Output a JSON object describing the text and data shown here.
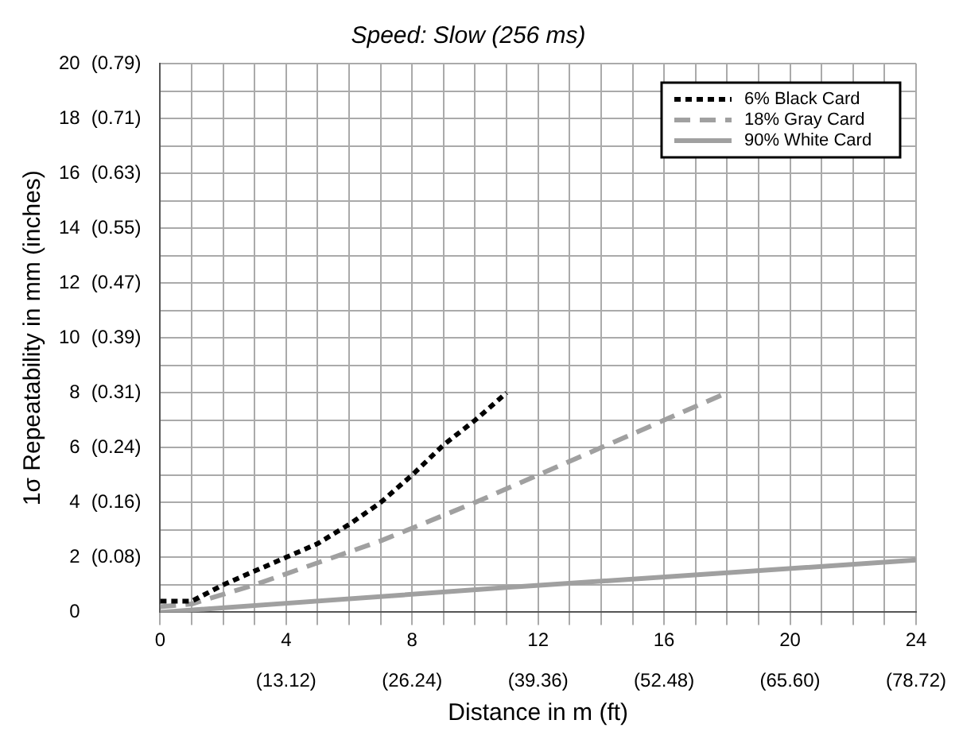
{
  "chart_data": {
    "type": "line",
    "title": "Speed: Slow (256 ms)",
    "xlabel": "Distance in m (ft)",
    "ylabel": "1σ Repeatability in mm (inches)",
    "xlim": [
      0,
      24
    ],
    "ylim": [
      0,
      20
    ],
    "xticks": [
      0,
      {
        "value": 1,
        "label": null
      },
      {
        "value": 2,
        "label": null
      },
      {
        "value": 3,
        "label": null
      },
      4,
      {
        "value": 5,
        "label": null
      },
      {
        "value": 6,
        "label": null
      },
      {
        "value": 7,
        "label": null
      },
      8,
      {
        "value": 9,
        "label": null
      },
      {
        "value": 10,
        "label": null
      },
      {
        "value": 11,
        "label": null
      },
      12,
      {
        "value": 13,
        "label": null
      },
      {
        "value": 14,
        "label": null
      },
      {
        "value": 15,
        "label": null
      },
      16,
      {
        "value": 17,
        "label": null
      },
      {
        "value": 18,
        "label": null
      },
      {
        "value": 19,
        "label": null
      },
      20,
      {
        "value": 21,
        "label": null
      },
      {
        "value": 22,
        "label": null
      },
      {
        "value": 23,
        "label": null
      },
      24
    ],
    "yticks": [
      0,
      {
        "value": 1,
        "label": null
      },
      2,
      {
        "value": 3,
        "label": null
      },
      4,
      {
        "value": 5,
        "label": null
      },
      6,
      {
        "value": 7,
        "label": null
      },
      8,
      {
        "value": 9,
        "label": null
      },
      10,
      {
        "value": 11,
        "label": null
      },
      12,
      {
        "value": 13,
        "label": null
      },
      14,
      {
        "value": 15,
        "label": null
      },
      16,
      {
        "value": 17,
        "label": null
      },
      18,
      {
        "value": 19,
        "label": null
      },
      20
    ],
    "x2lim": [
      0,
      78.72
    ],
    "x2ticks": [
      {
        "value": 13.12,
        "label": "(13.12)"
      },
      {
        "value": 26.24,
        "label": "(26.24)"
      },
      {
        "value": 39.36,
        "label": "(39.36)"
      },
      {
        "value": 52.48,
        "label": "(52.48)"
      },
      {
        "value": 65.6,
        "label": "(65.60)"
      },
      {
        "value": 78.72,
        "label": "(78.72)"
      }
    ],
    "y2lim": [
      0,
      0.7874
    ],
    "y2ticks": [
      {
        "value": 0.0787,
        "label": "(0.08)"
      },
      {
        "value": 0.1575,
        "label": "(0.16)"
      },
      {
        "value": 0.2362,
        "label": "(0.24)"
      },
      {
        "value": 0.315,
        "label": "(0.31)"
      },
      {
        "value": 0.3937,
        "label": "(0.39)"
      },
      {
        "value": 0.4724,
        "label": "(0.47)"
      },
      {
        "value": 0.5512,
        "label": "(0.55)"
      },
      {
        "value": 0.6299,
        "label": "(0.63)"
      },
      {
        "value": 0.7087,
        "label": "(0.71)"
      },
      {
        "value": 0.7874,
        "label": "(0.79)"
      }
    ],
    "grid": true,
    "legend": "top right",
    "marker": "none",
    "series": [
      {
        "name": "6% Black Card",
        "color": "#000000",
        "line_style": "dotted",
        "x": [
          0,
          1,
          2,
          3,
          4,
          5,
          6,
          7,
          8,
          9,
          10,
          11
        ],
        "values": [
          0.4,
          0.4,
          1.0,
          1.5,
          2.0,
          2.5,
          3.2,
          4.0,
          5.0,
          6.1,
          7.0,
          8.0
        ]
      },
      {
        "name": "18% Gray Card",
        "color": "#a0a0a0",
        "line_style": "dashed",
        "x": [
          0,
          1,
          3,
          5,
          7,
          10,
          14,
          18
        ],
        "values": [
          0.2,
          0.3,
          1.0,
          1.8,
          2.6,
          4.0,
          6.0,
          8.0
        ]
      },
      {
        "name": "90% White Card",
        "color": "#a0a0a0",
        "line_style": "solid",
        "x": [
          0,
          11,
          24
        ],
        "values": [
          0,
          0.9,
          1.9
        ]
      }
    ]
  }
}
